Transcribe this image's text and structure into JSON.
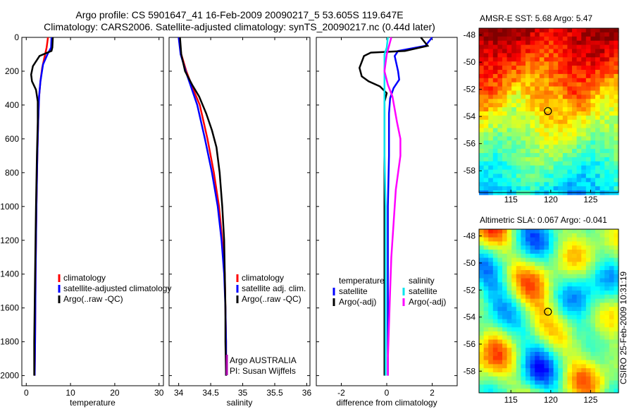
{
  "header": {
    "line1": "Argo profile: CS 5901647_41 16-Feb-2009 20090217_5 53.605S 119.647E",
    "line2": "Climatology: CARS2006. Satellite-adjusted climatology: synTS_20090217.nc (0.44d later)"
  },
  "stamp": "CSIRO 25-Feb-2009 10:31:19",
  "colors": {
    "red": "#ff0000",
    "blue": "#0000ff",
    "black": "#000000",
    "cyan": "#00e5ee",
    "magenta": "#ff00ff"
  },
  "chart_data": [
    {
      "type": "line",
      "xlabel": "temperature",
      "ylabel": "",
      "xlim": [
        -1,
        31
      ],
      "ylim": [
        2060,
        0
      ],
      "xticks": [
        0,
        10,
        20,
        30
      ],
      "yticks": [
        0,
        200,
        400,
        600,
        800,
        1000,
        1200,
        1400,
        1600,
        1800,
        2000
      ],
      "legend": {
        "placement": "bottom-right",
        "entries": [
          "climatology",
          "satellite-adjusted climatology",
          "Argo(..raw -QC)"
        ]
      },
      "series": [
        {
          "name": "climatology",
          "color": "#ff0000",
          "points": [
            [
              4.9,
              0
            ],
            [
              4.6,
              60
            ],
            [
              4.1,
              120
            ],
            [
              3.6,
              180
            ],
            [
              3.2,
              260
            ],
            [
              2.9,
              350
            ],
            [
              2.7,
              500
            ],
            [
              2.5,
              700
            ],
            [
              2.3,
              1000
            ],
            [
              2.1,
              1400
            ],
            [
              2.0,
              1800
            ],
            [
              1.9,
              2000
            ]
          ]
        },
        {
          "name": "satellite-adjusted climatology",
          "color": "#0000ff",
          "points": [
            [
              5.7,
              0
            ],
            [
              5.6,
              60
            ],
            [
              4.8,
              100
            ],
            [
              3.8,
              160
            ],
            [
              3.2,
              260
            ],
            [
              2.9,
              350
            ],
            [
              2.7,
              500
            ],
            [
              2.5,
              700
            ],
            [
              2.3,
              1000
            ],
            [
              2.1,
              1400
            ],
            [
              2.0,
              1800
            ],
            [
              1.9,
              2000
            ]
          ]
        },
        {
          "name": "Argo(..raw -QC)",
          "color": "#000000",
          "points": [
            [
              6.0,
              0
            ],
            [
              5.9,
              60
            ],
            [
              5.7,
              80
            ],
            [
              3.0,
              110
            ],
            [
              1.5,
              170
            ],
            [
              1.1,
              220
            ],
            [
              1.3,
              260
            ],
            [
              2.2,
              310
            ],
            [
              2.6,
              380
            ],
            [
              2.6,
              500
            ],
            [
              2.4,
              700
            ],
            [
              2.2,
              1000
            ],
            [
              2.0,
              1400
            ],
            [
              1.8,
              1800
            ],
            [
              1.8,
              2000
            ]
          ]
        }
      ]
    },
    {
      "type": "line",
      "xlabel": "salinity",
      "ylabel": "",
      "xlim": [
        33.85,
        36.05
      ],
      "ylim": [
        2060,
        0
      ],
      "xticks": [
        34,
        34.5,
        35,
        35.5,
        36
      ],
      "yticks": [
        0,
        200,
        400,
        600,
        800,
        1000,
        1200,
        1400,
        1600,
        1800,
        2000
      ],
      "legend": {
        "placement": "bottom-right",
        "entries": [
          "climatology",
          "satellite adj. clim.",
          "Argo(..raw -QC)"
        ]
      },
      "annotations": [
        "Argo AUSTRALIA",
        "PI: Susan Wijffels"
      ],
      "series": [
        {
          "name": "climatology",
          "color": "#ff0000",
          "points": [
            [
              34.0,
              0
            ],
            [
              34.04,
              100
            ],
            [
              34.12,
              200
            ],
            [
              34.22,
              300
            ],
            [
              34.33,
              400
            ],
            [
              34.45,
              600
            ],
            [
              34.55,
              800
            ],
            [
              34.63,
              1000
            ],
            [
              34.68,
              1200
            ],
            [
              34.72,
              1400
            ],
            [
              34.73,
              1600
            ],
            [
              34.74,
              1800
            ],
            [
              34.74,
              2000
            ]
          ]
        },
        {
          "name": "satellite adj. clim.",
          "color": "#0000ff",
          "points": [
            [
              34.0,
              0
            ],
            [
              34.03,
              100
            ],
            [
              34.11,
              200
            ],
            [
              34.2,
              300
            ],
            [
              34.29,
              400
            ],
            [
              34.41,
              600
            ],
            [
              34.52,
              800
            ],
            [
              34.61,
              1000
            ],
            [
              34.67,
              1200
            ],
            [
              34.71,
              1400
            ],
            [
              34.73,
              1600
            ],
            [
              34.74,
              1800
            ],
            [
              34.74,
              2000
            ]
          ]
        },
        {
          "name": "Argo(..raw -QC)",
          "color": "#000000",
          "points": [
            [
              34.02,
              0
            ],
            [
              34.04,
              100
            ],
            [
              34.1,
              200
            ],
            [
              34.21,
              280
            ],
            [
              34.32,
              350
            ],
            [
              34.43,
              450
            ],
            [
              34.52,
              550
            ],
            [
              34.59,
              650
            ],
            [
              34.64,
              800
            ],
            [
              34.68,
              1000
            ],
            [
              34.71,
              1200
            ],
            [
              34.72,
              1400
            ],
            [
              34.73,
              1600
            ],
            [
              34.73,
              1800
            ],
            [
              34.74,
              2000
            ]
          ]
        }
      ]
    },
    {
      "type": "line",
      "xlabel": "difference from climatology",
      "ylabel": "",
      "xlim": [
        -3.1,
        3.1
      ],
      "ylim": [
        2060,
        0
      ],
      "xticks": [
        -2,
        0,
        2
      ],
      "yticks": [
        0,
        200,
        400,
        600,
        800,
        1000,
        1200,
        1400,
        1600,
        1800,
        2000
      ],
      "legend": {
        "placement": "bottom",
        "groups": [
          {
            "title": "temperature",
            "entries": [
              "satellite",
              "Argo(-adj)"
            ]
          },
          {
            "title": "salinity",
            "entries": [
              "satellite",
              "Argo(-adj)"
            ]
          }
        ]
      },
      "series": [
        {
          "name": "temperature satellite",
          "color": "#0000ff",
          "points": [
            [
              2.0,
              0
            ],
            [
              1.7,
              50
            ],
            [
              0.5,
              80
            ],
            [
              0.35,
              110
            ],
            [
              0.4,
              140
            ],
            [
              0.5,
              200
            ],
            [
              0.55,
              250
            ],
            [
              0.3,
              300
            ],
            [
              0.15,
              360
            ],
            [
              0.1,
              450
            ],
            [
              0.1,
              700
            ],
            [
              0.05,
              1000
            ],
            [
              0.05,
              1500
            ],
            [
              0.05,
              2000
            ]
          ]
        },
        {
          "name": "temperature Argo(-adj)",
          "color": "#000000",
          "points": [
            [
              1.5,
              0
            ],
            [
              1.8,
              50
            ],
            [
              0.8,
              80
            ],
            [
              -0.7,
              90
            ],
            [
              -1.0,
              110
            ],
            [
              -1.2,
              180
            ],
            [
              -1.1,
              230
            ],
            [
              -0.8,
              260
            ],
            [
              -0.3,
              290
            ],
            [
              0.0,
              330
            ],
            [
              -0.1,
              380
            ],
            [
              -0.1,
              600
            ],
            [
              -0.1,
              1000
            ],
            [
              -0.1,
              1500
            ],
            [
              -0.1,
              1800
            ],
            [
              -0.1,
              2000
            ]
          ]
        },
        {
          "name": "salinity satellite",
          "color": "#00e5ee",
          "points": [
            [
              0.05,
              0
            ],
            [
              0.0,
              60
            ],
            [
              -0.1,
              100
            ],
            [
              -0.1,
              200
            ],
            [
              -0.1,
              400
            ],
            [
              -0.1,
              700
            ],
            [
              -0.05,
              1000
            ],
            [
              -0.05,
              1500
            ],
            [
              -0.05,
              2000
            ]
          ]
        },
        {
          "name": "salinity Argo(-adj)",
          "color": "#ff00ff",
          "points": [
            [
              0.2,
              0
            ],
            [
              0.0,
              100
            ],
            [
              -0.1,
              200
            ],
            [
              0.05,
              280
            ],
            [
              0.25,
              350
            ],
            [
              0.45,
              500
            ],
            [
              0.6,
              600
            ],
            [
              0.6,
              700
            ],
            [
              0.4,
              900
            ],
            [
              0.3,
              1100
            ],
            [
              0.2,
              1300
            ],
            [
              0.15,
              1500
            ],
            [
              0.1,
              1700
            ],
            [
              0.05,
              1900
            ],
            [
              0.05,
              2000
            ]
          ]
        }
      ]
    }
  ],
  "maps": [
    {
      "title": "AMSR-E SST: 5.68 Argo: 5.47",
      "xlim": [
        111,
        128.5
      ],
      "ylim": [
        -59.6,
        -47.5
      ],
      "xticks": [
        115,
        120,
        125
      ],
      "yticks": [
        -48,
        -50,
        -52,
        -54,
        -56,
        -58
      ],
      "marker": {
        "lon": 119.647,
        "lat": -53.605
      },
      "colormap": "jet"
    },
    {
      "title": "Altimetric SLA: 0.067 Argo: -0.041",
      "xlim": [
        111,
        128.5
      ],
      "ylim": [
        -59.6,
        -47.5
      ],
      "xticks": [
        115,
        120,
        125
      ],
      "yticks": [
        -48,
        -50,
        -52,
        -54,
        -56,
        -58
      ],
      "marker": {
        "lon": 119.647,
        "lat": -53.605
      },
      "colormap": "jet"
    }
  ]
}
